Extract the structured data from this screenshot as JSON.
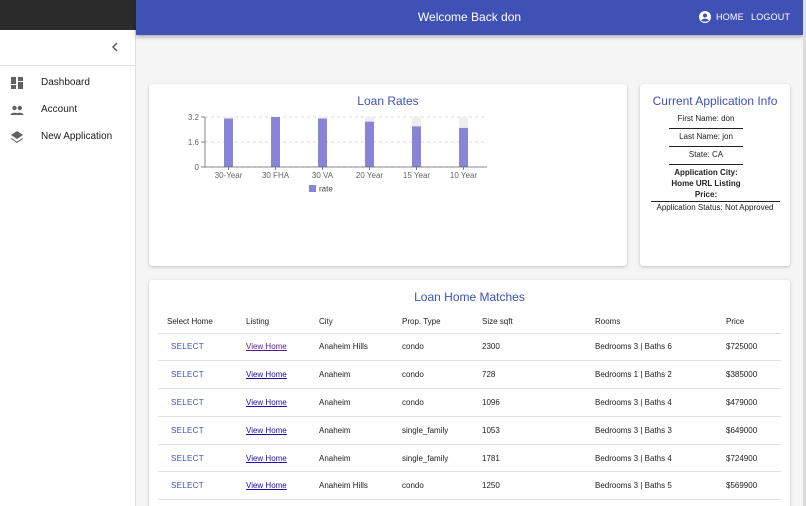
{
  "header": {
    "title": "Welcome Back don",
    "home_label": "HOME",
    "logout_label": "LOGOUT"
  },
  "sidebar": {
    "items": [
      {
        "label": "Dashboard",
        "icon": "dashboard-icon"
      },
      {
        "label": "Account",
        "icon": "people-icon"
      },
      {
        "label": "New Application",
        "icon": "layers-icon"
      }
    ]
  },
  "loan_rates": {
    "title": "Loan Rates"
  },
  "chart_data": {
    "type": "bar",
    "categories": [
      "30-Year",
      "30 FHA",
      "30 VA",
      "20 Year",
      "15 Year",
      "10 Year"
    ],
    "series": [
      {
        "name": "rate",
        "values": [
          3.1,
          3.2,
          3.1,
          2.9,
          2.6,
          2.5
        ]
      }
    ],
    "ylim": [
      0,
      3.2
    ],
    "yticks": [
      "0",
      "1.6",
      "3.2"
    ],
    "grid": true,
    "legend": "bottom",
    "colors": {
      "bar": "#8884d8",
      "background": "#eeeeee"
    }
  },
  "app_info": {
    "title": "Current Application Info",
    "first_name": "First Name: don",
    "last_name": "Last Name: jon",
    "state": "State: CA",
    "city": "Application City:",
    "home_url": "Home URL Listing",
    "price": "Price:",
    "status": "Application Status: Not Approved"
  },
  "matches": {
    "title": "Loan Home Matches",
    "columns": [
      "Select Home",
      "Listing",
      "City",
      "Prop. Type",
      "Size sqft",
      "Rooms",
      "Price"
    ],
    "rows": [
      {
        "select": "SELECT",
        "listing": "View Home",
        "city": "Anaheim Hills",
        "type": "condo",
        "size": "2300",
        "rooms": "Bedrooms 3 | Baths 6",
        "price": "$725000"
      },
      {
        "select": "SELECT",
        "listing": "View Home",
        "city": "Anaheim",
        "type": "condo",
        "size": "728",
        "rooms": "Bedrooms 1 | Baths 2",
        "price": "$385000"
      },
      {
        "select": "SELECT",
        "listing": "View Home",
        "city": "Anaheim",
        "type": "condo",
        "size": "1096",
        "rooms": "Bedrooms 3 | Baths 4",
        "price": "$479000"
      },
      {
        "select": "SELECT",
        "listing": "View Home",
        "city": "Anaheim",
        "type": "single_family",
        "size": "1053",
        "rooms": "Bedrooms 3 | Baths 3",
        "price": "$649000"
      },
      {
        "select": "SELECT",
        "listing": "View Home",
        "city": "Anaheim",
        "type": "single_family",
        "size": "1781",
        "rooms": "Bedrooms 3 | Baths 4",
        "price": "$724900"
      },
      {
        "select": "SELECT",
        "listing": "View Home",
        "city": "Anaheim Hills",
        "type": "condo",
        "size": "1250",
        "rooms": "Bedrooms 3 | Baths 5",
        "price": "$569900"
      }
    ]
  }
}
